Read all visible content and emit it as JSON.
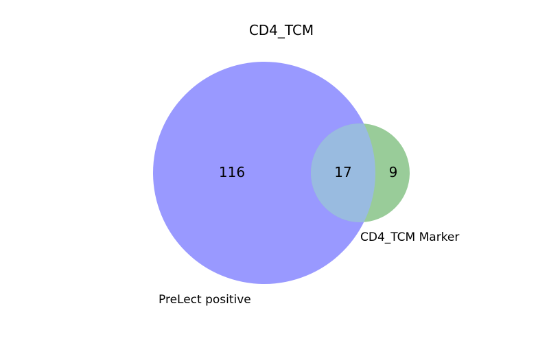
{
  "figure": {
    "title": "CD4_TCM"
  },
  "venn": {
    "sets": [
      {
        "label": "PreLect positive",
        "only_count": "116",
        "color": "#9999ff"
      },
      {
        "label": "CD4_TCM Marker",
        "only_count": "9",
        "color": "#99cc99"
      }
    ],
    "intersection": {
      "count": "17",
      "color": "#99bbe0"
    }
  }
}
